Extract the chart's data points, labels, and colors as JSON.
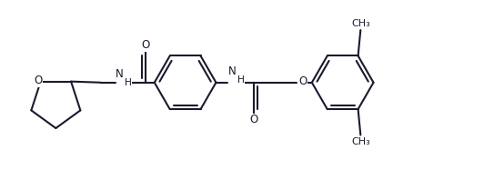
{
  "bg_color": "#ffffff",
  "line_color": "#1a1a2e",
  "line_width": 1.5,
  "font_size": 8.5,
  "figsize": [
    5.54,
    1.87
  ],
  "dpi": 100,
  "xlim": [
    0,
    10
  ],
  "ylim": [
    0,
    3.4
  ]
}
